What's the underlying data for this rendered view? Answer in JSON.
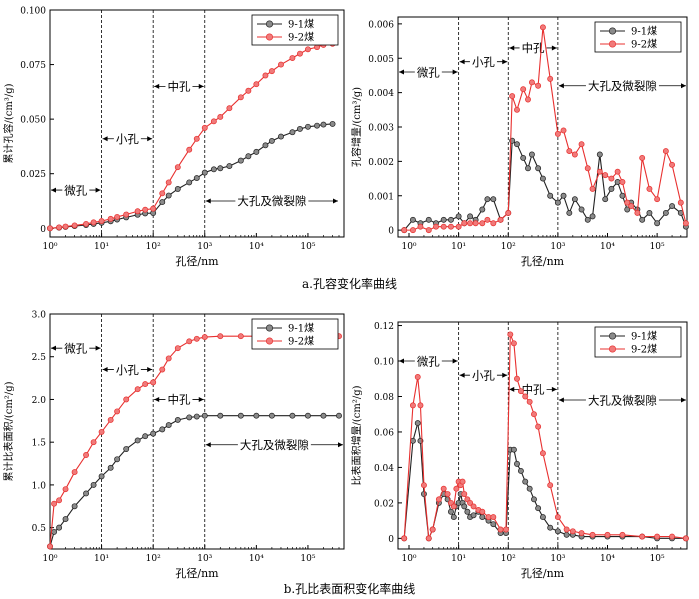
{
  "captions": {
    "a": "a.孔容变化率曲线",
    "b": "b.孔比表面积变化率曲线"
  },
  "colors": {
    "s1": "#222222",
    "s2": "#e8302f",
    "s1_fill": "#8a8a8a",
    "s2_fill": "#f07a7a"
  },
  "chart_data": [
    {
      "type": "line",
      "xscale": "log",
      "xlabel": "孔径/nm",
      "ylabel": "累计孔容/(cm³/g)",
      "xlim": [
        1,
        500000
      ],
      "ylim": [
        -0.004,
        0.1
      ],
      "xticks": [
        "10⁰",
        "10¹",
        "10²",
        "10³",
        "10⁴",
        "10⁵"
      ],
      "yticks": [
        "0",
        "0.025",
        "0.050",
        "0.075",
        "0.100"
      ],
      "ytick_values": [
        0,
        0.025,
        0.05,
        0.075,
        0.1
      ],
      "legend": "top-right",
      "series": [
        {
          "name": "9-1煤",
          "x": [
            1,
            1.5,
            2,
            3,
            5,
            7,
            10,
            15,
            20,
            30,
            50,
            70,
            100,
            150,
            200,
            300,
            500,
            700,
            1000,
            1500,
            2000,
            3000,
            5000,
            7000,
            10000,
            15000,
            20000,
            30000,
            50000,
            70000,
            100000,
            150000,
            200000,
            300000
          ],
          "y": [
            0,
            0.0003,
            0.0006,
            0.001,
            0.0015,
            0.002,
            0.0025,
            0.0032,
            0.004,
            0.005,
            0.0062,
            0.0068,
            0.007,
            0.012,
            0.015,
            0.018,
            0.021,
            0.023,
            0.0255,
            0.027,
            0.0275,
            0.0285,
            0.031,
            0.033,
            0.035,
            0.038,
            0.04,
            0.042,
            0.044,
            0.0455,
            0.0465,
            0.047,
            0.0475,
            0.0478
          ]
        },
        {
          "name": "9-2煤",
          "x": [
            1,
            1.5,
            2,
            3,
            5,
            7,
            10,
            15,
            20,
            30,
            50,
            70,
            100,
            150,
            200,
            300,
            500,
            700,
            1000,
            1500,
            2000,
            3000,
            5000,
            7000,
            10000,
            15000,
            20000,
            30000,
            50000,
            70000,
            100000,
            150000,
            200000,
            300000
          ],
          "y": [
            0,
            0.0004,
            0.0008,
            0.0013,
            0.002,
            0.0027,
            0.0033,
            0.0043,
            0.0052,
            0.0063,
            0.0078,
            0.0085,
            0.009,
            0.016,
            0.021,
            0.028,
            0.036,
            0.041,
            0.046,
            0.049,
            0.051,
            0.055,
            0.06,
            0.063,
            0.066,
            0.07,
            0.072,
            0.075,
            0.078,
            0.08,
            0.082,
            0.083,
            0.084,
            0.0845
          ]
        }
      ],
      "dividers": [
        10,
        100,
        1000
      ],
      "annotations": [
        {
          "text": "微孔",
          "x1": 1,
          "x2": 10,
          "y": 0.0175,
          "dir": "both"
        },
        {
          "text": "小孔",
          "x1": 10,
          "x2": 100,
          "y": 0.041,
          "dir": "both"
        },
        {
          "text": "中孔",
          "x1": 100,
          "x2": 1000,
          "y": 0.065,
          "dir": "both"
        },
        {
          "text": "大孔及微裂隙",
          "x1": 1000,
          "x2": 400000,
          "y": 0.0125,
          "dir": "both"
        }
      ]
    },
    {
      "type": "line",
      "xscale": "log",
      "xlabel": "孔径/nm",
      "ylabel": "孔容增量/(cm³/g)",
      "xlim": [
        0.6,
        400000
      ],
      "ylim": [
        -0.0002,
        0.0062
      ],
      "xticks": [
        "10⁰",
        "10¹",
        "10²",
        "10³",
        "10⁴",
        "10⁵"
      ],
      "yticks": [
        "0",
        "0.001",
        "0.002",
        "0.003",
        "0.004",
        "0.005",
        "0.006"
      ],
      "ytick_values": [
        0,
        0.001,
        0.002,
        0.003,
        0.004,
        0.005,
        0.006
      ],
      "legend": "top-right",
      "series": [
        {
          "name": "9-1煤",
          "x": [
            0.8,
            1.2,
            1.7,
            2.5,
            3.5,
            5,
            7,
            10,
            13,
            17,
            22,
            30,
            38,
            50,
            70,
            100,
            120,
            150,
            200,
            250,
            300,
            400,
            500,
            700,
            1000,
            1300,
            1700,
            2200,
            3000,
            4000,
            5000,
            7000,
            9000,
            12000,
            16000,
            20000,
            25000,
            30000,
            40000,
            50000,
            70000,
            100000,
            150000,
            200000,
            300000,
            380000
          ],
          "y": [
            0,
            0.0003,
            0.0002,
            0.0003,
            0.0002,
            0.0003,
            0.0003,
            0.0004,
            0.0002,
            0.0004,
            0.0003,
            0.0006,
            0.0009,
            0.0009,
            0.0003,
            0.0005,
            0.0026,
            0.0025,
            0.0021,
            0.0018,
            0.0022,
            0.0018,
            0.0015,
            0.001,
            0.0008,
            0.001,
            0.0005,
            0.0009,
            0.0006,
            0.0003,
            0.0004,
            0.0022,
            0.0009,
            0.0012,
            0.0014,
            0.001,
            0.0006,
            0.0008,
            0.0006,
            0.0003,
            0.0005,
            0.0002,
            0.0005,
            0.0007,
            0.0005,
            0.0001
          ]
        },
        {
          "name": "9-2煤",
          "x": [
            0.8,
            1.2,
            1.7,
            2.5,
            3.5,
            5,
            7,
            10,
            13,
            17,
            22,
            30,
            38,
            50,
            70,
            100,
            120,
            150,
            200,
            250,
            300,
            400,
            500,
            700,
            1000,
            1300,
            1700,
            2200,
            3000,
            4000,
            5000,
            7000,
            9000,
            12000,
            16000,
            20000,
            25000,
            30000,
            40000,
            50000,
            70000,
            100000,
            150000,
            200000,
            300000,
            380000
          ],
          "y": [
            0,
            0,
            0.0001,
            0,
            0.0001,
            0.0001,
            0.0001,
            0.0001,
            0.0002,
            0.0002,
            0.0002,
            0.0002,
            0.0003,
            0.0002,
            0.0003,
            0.0005,
            0.0039,
            0.0035,
            0.0041,
            0.0038,
            0.0043,
            0.0042,
            0.0059,
            0.0044,
            0.0028,
            0.0029,
            0.0023,
            0.0022,
            0.0025,
            0.0018,
            0.0012,
            0.0017,
            0.0016,
            0.0015,
            0.0017,
            0.0014,
            0.0008,
            0.0007,
            0.0005,
            0.0021,
            0.0012,
            0.0009,
            0.0023,
            0.0019,
            0.0008,
            0.0002
          ]
        }
      ],
      "dividers": [
        10,
        100,
        1000
      ],
      "annotations": [
        {
          "text": "微孔",
          "x1": 0.6,
          "x2": 10,
          "y": 0.0046,
          "dir": "both"
        },
        {
          "text": "小孔",
          "x1": 10,
          "x2": 100,
          "y": 0.0049,
          "dir": "both"
        },
        {
          "text": "中孔",
          "x1": 100,
          "x2": 1000,
          "y": 0.0053,
          "dir": "both"
        },
        {
          "text": "大孔及微裂隙",
          "x1": 1000,
          "x2": 400000,
          "y": 0.0042,
          "dir": "both"
        }
      ]
    },
    {
      "type": "line",
      "xscale": "log",
      "xlabel": "孔径/nm",
      "ylabel": "累计比表面积/(cm²/g)",
      "xlim": [
        1,
        500000
      ],
      "ylim": [
        0.25,
        3.0
      ],
      "xticks": [
        "10⁰",
        "10¹",
        "10²",
        "10³",
        "10⁴",
        "10⁵"
      ],
      "yticks": [
        "0.5",
        "1.0",
        "1.5",
        "2.0",
        "2.5",
        "3.0"
      ],
      "ytick_values": [
        0.5,
        1.0,
        1.5,
        2.0,
        2.5,
        3.0
      ],
      "legend": "top-right",
      "series": [
        {
          "name": "9-1煤",
          "x": [
            1,
            1.2,
            1.5,
            2,
            3,
            5,
            7,
            10,
            15,
            20,
            30,
            50,
            70,
            100,
            150,
            200,
            300,
            500,
            700,
            1000,
            2000,
            5000,
            10000,
            20000,
            50000,
            100000,
            200000,
            400000
          ],
          "y": [
            0.28,
            0.45,
            0.5,
            0.6,
            0.75,
            0.9,
            1.0,
            1.1,
            1.2,
            1.3,
            1.42,
            1.52,
            1.57,
            1.6,
            1.65,
            1.7,
            1.76,
            1.79,
            1.8,
            1.81,
            1.81,
            1.81,
            1.81,
            1.81,
            1.81,
            1.81,
            1.81,
            1.81
          ]
        },
        {
          "name": "9-2煤",
          "x": [
            1,
            1.2,
            1.5,
            2,
            3,
            5,
            7,
            10,
            15,
            20,
            30,
            50,
            70,
            100,
            150,
            200,
            300,
            500,
            700,
            1000,
            2000,
            5000,
            10000,
            20000,
            50000,
            100000,
            200000,
            400000
          ],
          "y": [
            0.28,
            0.78,
            0.82,
            0.95,
            1.15,
            1.35,
            1.5,
            1.62,
            1.76,
            1.86,
            2.0,
            2.12,
            2.18,
            2.2,
            2.35,
            2.48,
            2.6,
            2.68,
            2.71,
            2.73,
            2.74,
            2.74,
            2.74,
            2.74,
            2.74,
            2.74,
            2.74,
            2.74
          ]
        }
      ],
      "dividers": [
        10,
        100,
        1000
      ],
      "annotations": [
        {
          "text": "微孔",
          "x1": 1,
          "x2": 10,
          "y": 2.6,
          "dir": "both"
        },
        {
          "text": "小孔",
          "x1": 10,
          "x2": 100,
          "y": 2.35,
          "dir": "both"
        },
        {
          "text": "中孔",
          "x1": 100,
          "x2": 1000,
          "y": 2.0,
          "dir": "both"
        },
        {
          "text": "大孔及微裂隙",
          "x1": 1000,
          "x2": 500000,
          "y": 1.47,
          "dir": "both"
        }
      ]
    },
    {
      "type": "line",
      "xscale": "log",
      "xlabel": "孔径/nm",
      "ylabel": "比表面积增量/(cm²/g)",
      "xlim": [
        0.6,
        400000
      ],
      "ylim": [
        -0.006,
        0.122
      ],
      "xticks": [
        "10⁰",
        "10¹",
        "10²",
        "10³",
        "10⁴",
        "10⁵"
      ],
      "yticks": [
        "0",
        "0.02",
        "0.04",
        "0.06",
        "0.08",
        "0.10",
        "0.12"
      ],
      "ytick_values": [
        0,
        0.02,
        0.04,
        0.06,
        0.08,
        0.1,
        0.12
      ],
      "legend": "top-right",
      "series": [
        {
          "name": "9-1煤",
          "x": [
            0.8,
            1.2,
            1.5,
            1.7,
            2,
            2.5,
            3,
            4,
            5,
            6,
            7,
            8,
            9,
            10,
            11,
            12,
            13,
            15,
            17,
            20,
            25,
            30,
            40,
            50,
            70,
            90,
            110,
            130,
            150,
            180,
            220,
            270,
            330,
            400,
            500,
            700,
            1000,
            1500,
            2000,
            3000,
            5000,
            10000,
            20000,
            50000,
            100000,
            200000,
            380000
          ],
          "y": [
            0,
            0.055,
            0.065,
            0.055,
            0.025,
            0,
            0.005,
            0.02,
            0.025,
            0.022,
            0.015,
            0.012,
            0.018,
            0.02,
            0.025,
            0.02,
            0.018,
            0.015,
            0.012,
            0.013,
            0.015,
            0.012,
            0.01,
            0.008,
            0.003,
            0.003,
            0.05,
            0.05,
            0.042,
            0.038,
            0.032,
            0.028,
            0.022,
            0.017,
            0.012,
            0.006,
            0.004,
            0.002,
            0.002,
            0.001,
            0.001,
            0.001,
            0.001,
            0.001,
            0,
            0,
            0
          ]
        },
        {
          "name": "9-2煤",
          "x": [
            0.8,
            1.2,
            1.5,
            1.7,
            2,
            2.5,
            3,
            4,
            5,
            6,
            7,
            8,
            9,
            10,
            11,
            12,
            13,
            15,
            17,
            20,
            25,
            30,
            40,
            50,
            70,
            90,
            110,
            130,
            150,
            180,
            220,
            270,
            330,
            400,
            500,
            700,
            1000,
            1500,
            2000,
            3000,
            5000,
            10000,
            20000,
            50000,
            100000,
            200000,
            380000
          ],
          "y": [
            0,
            0.075,
            0.091,
            0.075,
            0.03,
            0,
            0.005,
            0.022,
            0.028,
            0.025,
            0.02,
            0.018,
            0.028,
            0.032,
            0.03,
            0.032,
            0.025,
            0.022,
            0.02,
            0.018,
            0.016,
            0.015,
            0.012,
            0.012,
            0.005,
            0.005,
            0.115,
            0.11,
            0.09,
            0.083,
            0.08,
            0.077,
            0.07,
            0.063,
            0.048,
            0.03,
            0.012,
            0.005,
            0.004,
            0.003,
            0.002,
            0.002,
            0.002,
            0.001,
            0.001,
            0.001,
            0
          ]
        }
      ],
      "dividers": [
        10,
        100,
        1000
      ],
      "annotations": [
        {
          "text": "微孔",
          "x1": 0.6,
          "x2": 10,
          "y": 0.1,
          "dir": "both"
        },
        {
          "text": "小孔",
          "x1": 10,
          "x2": 100,
          "y": 0.092,
          "dir": "both"
        },
        {
          "text": "中孔",
          "x1": 100,
          "x2": 1000,
          "y": 0.084,
          "dir": "both"
        },
        {
          "text": "大孔及微裂隙",
          "x1": 1000,
          "x2": 400000,
          "y": 0.078,
          "dir": "both"
        }
      ]
    }
  ]
}
